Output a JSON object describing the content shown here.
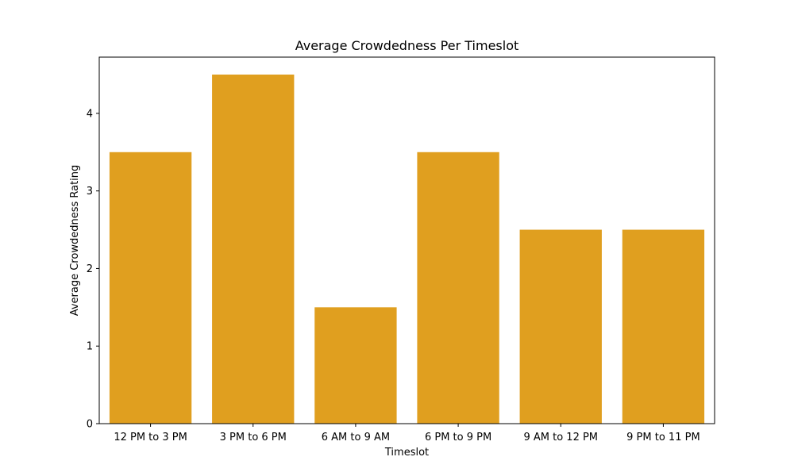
{
  "chart_data": {
    "type": "bar",
    "title": "Average Crowdedness Per Timeslot",
    "xlabel": "Timeslot",
    "ylabel": "Average Crowdedness Rating",
    "categories": [
      "12 PM to 3 PM",
      "3 PM to 6 PM",
      "6 AM to 9 AM",
      "6 PM to 9 PM",
      "9 AM to 12 PM",
      "9 PM to 11 PM"
    ],
    "values": [
      3.5,
      4.5,
      1.5,
      3.5,
      2.5,
      2.5
    ],
    "ylim": [
      0,
      4.725
    ],
    "yticks": [
      "0",
      "1",
      "2",
      "3",
      "4"
    ],
    "bar_color": "#e09f1f",
    "grid": false,
    "legend": "none"
  }
}
